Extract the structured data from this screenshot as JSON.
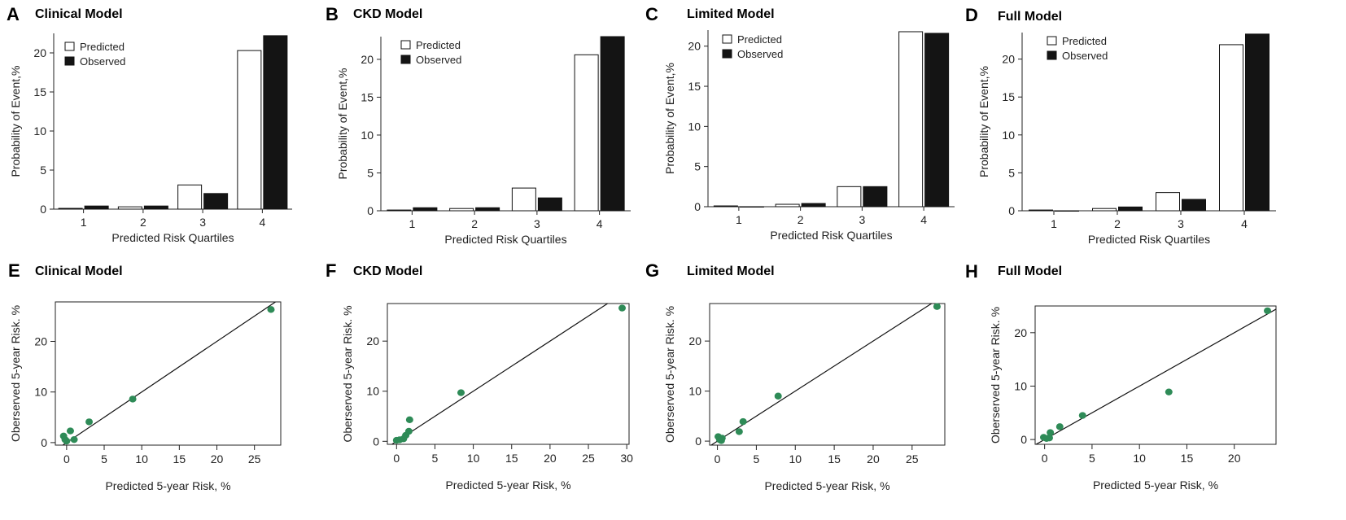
{
  "colors": {
    "predicted": "#ffffff",
    "observed": "#141414",
    "point": "#2e8b57",
    "axis": "#222222"
  },
  "chart_data": [
    {
      "panel": "A",
      "title": "Clinical Model",
      "type": "bar",
      "xlabel": "Predicted Risk Quartiles",
      "ylabel": "Probability of Event,%",
      "categories": [
        "1",
        "2",
        "3",
        "4"
      ],
      "ylim": [
        0,
        22.5
      ],
      "yticks": [
        0,
        5,
        10,
        15,
        20
      ],
      "legend": [
        "Predicted",
        "Observed"
      ],
      "legend_position": "top-left",
      "series": [
        {
          "name": "Predicted",
          "values": [
            0.1,
            0.3,
            3.1,
            20.3
          ]
        },
        {
          "name": "Observed",
          "values": [
            0.4,
            0.4,
            2.0,
            22.2
          ]
        }
      ]
    },
    {
      "panel": "B",
      "title": "CKD Model",
      "type": "bar",
      "xlabel": "Predicted Risk Quartiles",
      "ylabel": "Probability of Event,%",
      "categories": [
        "1",
        "2",
        "3",
        "4"
      ],
      "ylim": [
        0,
        23
      ],
      "yticks": [
        0,
        5,
        10,
        15,
        20
      ],
      "legend": [
        "Predicted",
        "Observed"
      ],
      "legend_position": "top-left",
      "series": [
        {
          "name": "Predicted",
          "values": [
            0.1,
            0.3,
            3.0,
            20.6
          ]
        },
        {
          "name": "Observed",
          "values": [
            0.4,
            0.4,
            1.7,
            23.0
          ]
        }
      ]
    },
    {
      "panel": "C",
      "title": "Limited Model",
      "type": "bar",
      "xlabel": "Predicted Risk Quartiles",
      "ylabel": "Probability of Event,%",
      "categories": [
        "1",
        "2",
        "3",
        "4"
      ],
      "ylim": [
        0,
        22
      ],
      "yticks": [
        0,
        5,
        10,
        15,
        20
      ],
      "legend": [
        "Predicted",
        "Observed"
      ],
      "legend_position": "top-left",
      "series": [
        {
          "name": "Predicted",
          "values": [
            0.1,
            0.3,
            2.5,
            21.8
          ]
        },
        {
          "name": "Observed",
          "values": [
            0.0,
            0.4,
            2.5,
            21.6
          ]
        }
      ]
    },
    {
      "panel": "D",
      "title": "Full Model",
      "type": "bar",
      "xlabel": "Predicted Risk Quartiles",
      "ylabel": "Probability of Event,%",
      "categories": [
        "1",
        "2",
        "3",
        "4"
      ],
      "ylim": [
        0,
        23.5
      ],
      "yticks": [
        0,
        5,
        10,
        15,
        20
      ],
      "legend": [
        "Predicted",
        "Observed"
      ],
      "legend_position": "top-left",
      "series": [
        {
          "name": "Predicted",
          "values": [
            0.1,
            0.3,
            2.4,
            21.9
          ]
        },
        {
          "name": "Observed",
          "values": [
            0.0,
            0.5,
            1.5,
            23.3
          ]
        }
      ]
    },
    {
      "panel": "E",
      "title": "Clinical Model",
      "type": "scatter",
      "xlabel": "Predicted 5-year Risk, %",
      "ylabel": "Oberserved 5-year Risk. %",
      "xlim": [
        -1.5,
        28.5
      ],
      "ylim": [
        -0.5,
        27.8
      ],
      "xticks": [
        0,
        5,
        10,
        15,
        20,
        25
      ],
      "yticks": [
        0,
        10,
        20
      ],
      "reference_line": "y = x",
      "points": [
        {
          "x": -0.4,
          "y": 1.3
        },
        {
          "x": -0.2,
          "y": 0.6
        },
        {
          "x": 0.0,
          "y": 0.3
        },
        {
          "x": 0.5,
          "y": 2.3
        },
        {
          "x": 1.0,
          "y": 0.6
        },
        {
          "x": 3.0,
          "y": 4.1
        },
        {
          "x": 8.8,
          "y": 8.6
        },
        {
          "x": 27.2,
          "y": 26.3
        }
      ]
    },
    {
      "panel": "F",
      "title": "CKD Model",
      "type": "scatter",
      "xlabel": "Predicted 5-year Risk, %",
      "ylabel": "Oberserved 5-year Risk. %",
      "xlim": [
        -1.2,
        30.3
      ],
      "ylim": [
        -0.6,
        27.5
      ],
      "xticks": [
        0,
        5,
        10,
        15,
        20,
        25,
        30
      ],
      "yticks": [
        0,
        10,
        20
      ],
      "reference_line": "y = x",
      "points": [
        {
          "x": 0.0,
          "y": 0.2
        },
        {
          "x": 0.4,
          "y": 0.3
        },
        {
          "x": 0.9,
          "y": 0.5
        },
        {
          "x": 1.2,
          "y": 1.2
        },
        {
          "x": 1.6,
          "y": 2.0
        },
        {
          "x": 1.7,
          "y": 4.3
        },
        {
          "x": 8.4,
          "y": 9.7
        },
        {
          "x": 29.4,
          "y": 26.6
        }
      ]
    },
    {
      "panel": "G",
      "title": "Limited Model",
      "type": "scatter",
      "xlabel": "Predicted 5-year Risk, %",
      "ylabel": "Oberserved 5-year Risk. %",
      "xlim": [
        -1.0,
        29.2
      ],
      "ylim": [
        -0.8,
        27.5
      ],
      "xticks": [
        0,
        5,
        10,
        15,
        20,
        25
      ],
      "yticks": [
        0,
        10,
        20
      ],
      "reference_line": "y = x",
      "points": [
        {
          "x": 0.1,
          "y": 0.9
        },
        {
          "x": 0.3,
          "y": 0.3
        },
        {
          "x": 0.5,
          "y": 0.1
        },
        {
          "x": 0.6,
          "y": 0.6
        },
        {
          "x": 2.8,
          "y": 1.9
        },
        {
          "x": 3.3,
          "y": 3.9
        },
        {
          "x": 7.8,
          "y": 9.0
        },
        {
          "x": 28.2,
          "y": 26.9
        }
      ]
    },
    {
      "panel": "H",
      "title": "Full Model",
      "type": "scatter",
      "xlabel": "Predicted 5-year Risk, %",
      "ylabel": "Oberserved 5-year Risk. %",
      "xlim": [
        -1.0,
        24.4
      ],
      "ylim": [
        -0.9,
        25.0
      ],
      "xticks": [
        0,
        5,
        10,
        15,
        20
      ],
      "yticks": [
        0,
        10,
        20
      ],
      "reference_line": "y = x",
      "points": [
        {
          "x": -0.1,
          "y": 0.4
        },
        {
          "x": 0.2,
          "y": 0.2
        },
        {
          "x": 0.5,
          "y": 0.3
        },
        {
          "x": 0.6,
          "y": 1.3
        },
        {
          "x": 1.6,
          "y": 2.4
        },
        {
          "x": 4.0,
          "y": 4.5
        },
        {
          "x": 13.1,
          "y": 8.9
        },
        {
          "x": 23.5,
          "y": 24.1
        }
      ]
    }
  ]
}
